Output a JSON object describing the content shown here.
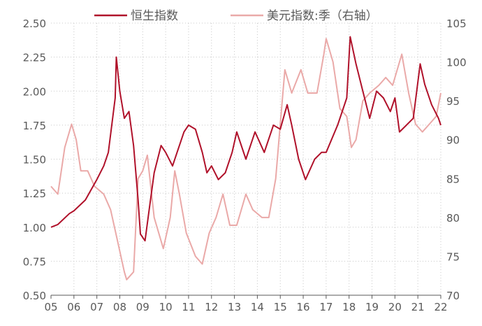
{
  "chart_data": {
    "type": "line",
    "title": "",
    "legend_position": "top",
    "grid": true,
    "x_ticks": [
      "05",
      "06",
      "07",
      "08",
      "09",
      "10",
      "11",
      "12",
      "13",
      "14",
      "15",
      "16",
      "17",
      "18",
      "19",
      "20",
      "21",
      "22"
    ],
    "xlim": [
      2005,
      2022
    ],
    "left_axis": {
      "ylim": [
        0.5,
        2.5
      ],
      "ticks": [
        "0.50",
        "0.75",
        "1.00",
        "1.25",
        "1.50",
        "1.75",
        "2.00",
        "2.25",
        "2.50"
      ]
    },
    "right_axis": {
      "ylim": [
        70,
        105
      ],
      "ticks": [
        "70",
        "75",
        "80",
        "85",
        "90",
        "95",
        "100",
        "105"
      ]
    },
    "series": [
      {
        "name": "恒生指数",
        "axis": "left",
        "color": "#b0112a",
        "points": [
          [
            2005.0,
            1.0
          ],
          [
            2005.3,
            1.02
          ],
          [
            2005.8,
            1.1
          ],
          [
            2006.0,
            1.12
          ],
          [
            2006.5,
            1.2
          ],
          [
            2007.0,
            1.35
          ],
          [
            2007.3,
            1.45
          ],
          [
            2007.5,
            1.55
          ],
          [
            2007.8,
            1.95
          ],
          [
            2007.85,
            2.25
          ],
          [
            2008.0,
            2.0
          ],
          [
            2008.2,
            1.8
          ],
          [
            2008.4,
            1.85
          ],
          [
            2008.6,
            1.6
          ],
          [
            2008.8,
            1.2
          ],
          [
            2008.9,
            0.95
          ],
          [
            2009.1,
            0.9
          ],
          [
            2009.3,
            1.15
          ],
          [
            2009.5,
            1.4
          ],
          [
            2009.8,
            1.6
          ],
          [
            2010.0,
            1.55
          ],
          [
            2010.3,
            1.45
          ],
          [
            2010.5,
            1.55
          ],
          [
            2010.8,
            1.7
          ],
          [
            2011.0,
            1.75
          ],
          [
            2011.3,
            1.72
          ],
          [
            2011.6,
            1.55
          ],
          [
            2011.8,
            1.4
          ],
          [
            2012.0,
            1.45
          ],
          [
            2012.3,
            1.35
          ],
          [
            2012.6,
            1.4
          ],
          [
            2012.9,
            1.55
          ],
          [
            2013.1,
            1.7
          ],
          [
            2013.5,
            1.5
          ],
          [
            2013.9,
            1.7
          ],
          [
            2014.3,
            1.55
          ],
          [
            2014.7,
            1.75
          ],
          [
            2015.0,
            1.72
          ],
          [
            2015.3,
            1.9
          ],
          [
            2015.5,
            1.75
          ],
          [
            2015.8,
            1.5
          ],
          [
            2016.1,
            1.35
          ],
          [
            2016.5,
            1.5
          ],
          [
            2016.8,
            1.55
          ],
          [
            2017.0,
            1.55
          ],
          [
            2017.5,
            1.75
          ],
          [
            2017.9,
            1.95
          ],
          [
            2018.05,
            2.4
          ],
          [
            2018.3,
            2.2
          ],
          [
            2018.6,
            2.0
          ],
          [
            2018.9,
            1.8
          ],
          [
            2019.2,
            2.0
          ],
          [
            2019.5,
            1.95
          ],
          [
            2019.8,
            1.85
          ],
          [
            2020.0,
            1.95
          ],
          [
            2020.2,
            1.7
          ],
          [
            2020.5,
            1.75
          ],
          [
            2020.8,
            1.8
          ],
          [
            2021.1,
            2.2
          ],
          [
            2021.3,
            2.05
          ],
          [
            2021.6,
            1.9
          ],
          [
            2021.9,
            1.8
          ],
          [
            2022.0,
            1.75
          ]
        ]
      },
      {
        "name": "美元指数:季（右轴）",
        "axis": "right",
        "color": "#eaa9a8",
        "points": [
          [
            2005.0,
            84
          ],
          [
            2005.3,
            83
          ],
          [
            2005.6,
            89
          ],
          [
            2005.9,
            92
          ],
          [
            2006.1,
            90
          ],
          [
            2006.3,
            86
          ],
          [
            2006.6,
            86
          ],
          [
            2006.9,
            84
          ],
          [
            2007.3,
            83
          ],
          [
            2007.6,
            81
          ],
          [
            2007.9,
            77
          ],
          [
            2008.2,
            73
          ],
          [
            2008.3,
            72
          ],
          [
            2008.6,
            73
          ],
          [
            2008.8,
            85
          ],
          [
            2009.0,
            86
          ],
          [
            2009.2,
            88
          ],
          [
            2009.5,
            80
          ],
          [
            2009.9,
            76
          ],
          [
            2010.2,
            80
          ],
          [
            2010.4,
            86
          ],
          [
            2010.6,
            83
          ],
          [
            2010.9,
            78
          ],
          [
            2011.3,
            75
          ],
          [
            2011.6,
            74
          ],
          [
            2011.9,
            78
          ],
          [
            2012.2,
            80
          ],
          [
            2012.5,
            83
          ],
          [
            2012.8,
            79
          ],
          [
            2013.1,
            79
          ],
          [
            2013.5,
            83
          ],
          [
            2013.8,
            81
          ],
          [
            2014.2,
            80
          ],
          [
            2014.5,
            80
          ],
          [
            2014.8,
            85
          ],
          [
            2015.0,
            92
          ],
          [
            2015.2,
            99
          ],
          [
            2015.5,
            96
          ],
          [
            2015.9,
            99
          ],
          [
            2016.2,
            96
          ],
          [
            2016.6,
            96
          ],
          [
            2016.9,
            101
          ],
          [
            2017.0,
            103
          ],
          [
            2017.3,
            100
          ],
          [
            2017.6,
            94
          ],
          [
            2017.9,
            93
          ],
          [
            2018.1,
            89
          ],
          [
            2018.3,
            90
          ],
          [
            2018.6,
            95
          ],
          [
            2018.9,
            96
          ],
          [
            2019.3,
            97
          ],
          [
            2019.6,
            98
          ],
          [
            2019.9,
            97
          ],
          [
            2020.2,
            100
          ],
          [
            2020.3,
            101
          ],
          [
            2020.6,
            96
          ],
          [
            2020.9,
            92
          ],
          [
            2021.2,
            91
          ],
          [
            2021.5,
            92
          ],
          [
            2021.8,
            93
          ],
          [
            2022.0,
            96
          ]
        ]
      }
    ]
  }
}
